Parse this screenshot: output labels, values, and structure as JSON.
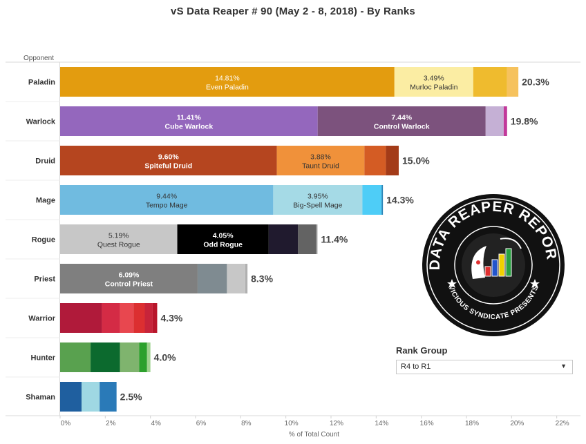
{
  "title": "vS Data Reaper #  90 (May 2 - 8, 2018) - By Ranks",
  "rank_group": {
    "label": "Rank Group",
    "selected": "R4 to R1"
  },
  "logo": {
    "top_text": "DATA REAPER REPORT",
    "bottom_text": "VICIOUS SYNDICATE PRESENTS",
    "colors": {
      "badge": "#111111",
      "ring": "#ffffff",
      "star": "#ffffff",
      "bars": [
        "#e03030",
        "#2255cc",
        "#f0d000",
        "#28a040"
      ]
    }
  },
  "chart_data": {
    "type": "bar",
    "orientation": "horizontal",
    "stacked": true,
    "y_header": "Opponent",
    "xlabel": "% of Total Count",
    "xlim": [
      0,
      22.5
    ],
    "xticks": [
      0,
      2,
      4,
      6,
      8,
      10,
      12,
      14,
      16,
      18,
      20,
      22
    ],
    "xtick_labels": [
      "0%",
      "2%",
      "4%",
      "6%",
      "8%",
      "10%",
      "12%",
      "14%",
      "16%",
      "18%",
      "20%",
      "22%"
    ],
    "grid": false,
    "categories": [
      {
        "name": "Paladin",
        "total_label": "20.3%",
        "segments": [
          {
            "value": 14.81,
            "pct": "14.81%",
            "label": "Even Paladin",
            "color": "#e39c0f",
            "text_color": "#ffffff"
          },
          {
            "value": 3.49,
            "pct": "3.49%",
            "label": "Murloc Paladin",
            "color": "#fbeda3",
            "text_color": "#333333"
          },
          {
            "value": 1.5,
            "color": "#efbb2e"
          },
          {
            "value": 0.5,
            "color": "#f6c25d"
          }
        ]
      },
      {
        "name": "Warlock",
        "total_label": "19.8%",
        "segments": [
          {
            "value": 11.41,
            "pct": "11.41%",
            "label": "Cube Warlock",
            "color": "#9467bd",
            "text_color": "#ffffff"
          },
          {
            "value": 7.44,
            "pct": "7.44%",
            "label": "Control Warlock",
            "color": "#7c527d",
            "text_color": "#ffffff"
          },
          {
            "value": 0.8,
            "color": "#c5b0d5"
          },
          {
            "value": 0.15,
            "color": "#c2399a"
          }
        ]
      },
      {
        "name": "Druid",
        "total_label": "15.0%",
        "segments": [
          {
            "value": 9.6,
            "pct": "9.60%",
            "label": "Spiteful Druid",
            "color": "#b5451f",
            "text_color": "#ffffff"
          },
          {
            "value": 3.88,
            "pct": "3.88%",
            "label": "Taunt Druid",
            "color": "#f0913a",
            "text_color": "#333333"
          },
          {
            "value": 0.95,
            "color": "#d45c24"
          },
          {
            "value": 0.57,
            "color": "#a33b18"
          }
        ]
      },
      {
        "name": "Mage",
        "total_label": "14.3%",
        "segments": [
          {
            "value": 9.44,
            "pct": "9.44%",
            "label": "Tempo Mage",
            "color": "#70bbe0",
            "text_color": "#333333"
          },
          {
            "value": 3.95,
            "pct": "3.95%",
            "label": "Big-Spell Mage",
            "color": "#a5dae6",
            "text_color": "#333333"
          },
          {
            "value": 0.85,
            "color": "#4ecdf7"
          },
          {
            "value": 0.06,
            "color": "#2c86b8"
          }
        ]
      },
      {
        "name": "Rogue",
        "total_label": "11.4%",
        "segments": [
          {
            "value": 5.19,
            "pct": "5.19%",
            "label": "Quest Rogue",
            "color": "#c7c7c7",
            "text_color": "#333333"
          },
          {
            "value": 4.05,
            "pct": "4.05%",
            "label": "Odd Rogue",
            "color": "#000000",
            "text_color": "#ffffff"
          },
          {
            "value": 1.3,
            "color": "#201a2e"
          },
          {
            "value": 0.8,
            "color": "#636363"
          },
          {
            "value": 0.06,
            "color": "#9c9c9c"
          }
        ]
      },
      {
        "name": "Priest",
        "total_label": "8.3%",
        "segments": [
          {
            "value": 6.09,
            "pct": "6.09%",
            "label": "Control Priest",
            "color": "#7f7f7f",
            "text_color": "#ffffff"
          },
          {
            "value": 1.3,
            "color": "#7f8b91"
          },
          {
            "value": 0.81,
            "color": "#c7c7c7"
          },
          {
            "value": 0.1,
            "color": "#b0b0b0"
          }
        ]
      },
      {
        "name": "Warrior",
        "total_label": "4.3%",
        "segments": [
          {
            "value": 1.85,
            "color": "#b01a3a"
          },
          {
            "value": 0.8,
            "color": "#d42b45"
          },
          {
            "value": 0.6,
            "color": "#e8474f"
          },
          {
            "value": 0.5,
            "color": "#dc2f31"
          },
          {
            "value": 0.35,
            "color": "#c7243a"
          },
          {
            "value": 0.2,
            "color": "#b8162b"
          }
        ]
      },
      {
        "name": "Hunter",
        "total_label": "4.0%",
        "segments": [
          {
            "value": 1.35,
            "color": "#59a14f"
          },
          {
            "value": 1.3,
            "color": "#0c6a2e"
          },
          {
            "value": 0.85,
            "color": "#7fb46e"
          },
          {
            "value": 0.35,
            "color": "#2ca02c"
          },
          {
            "value": 0.15,
            "color": "#9fd28e"
          }
        ]
      },
      {
        "name": "Shaman",
        "total_label": "2.5%",
        "segments": [
          {
            "value": 0.95,
            "color": "#1f5f9f"
          },
          {
            "value": 0.8,
            "color": "#9fd8e3"
          },
          {
            "value": 0.75,
            "color": "#2a7ab8"
          }
        ]
      }
    ]
  }
}
